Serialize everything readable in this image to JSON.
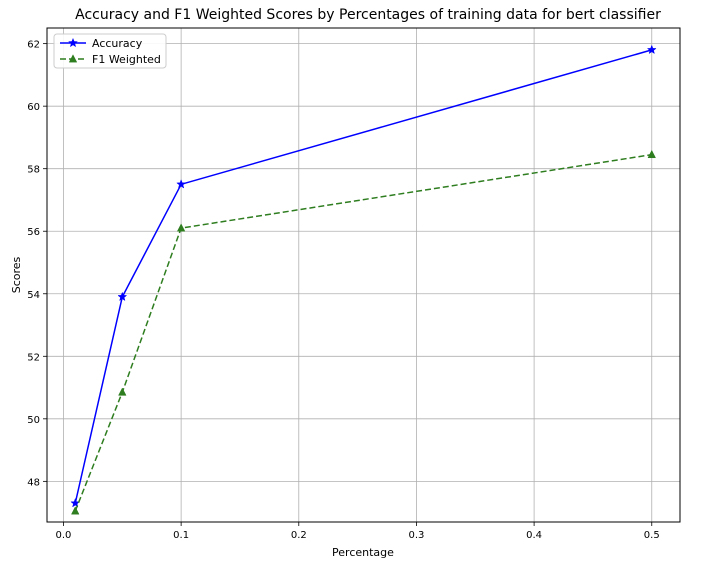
{
  "chart_data": {
    "type": "line",
    "title": "Accuracy and F1 Weighted Scores by Percentages of training data for bert classifier",
    "xlabel": "Percentage",
    "ylabel": "Scores",
    "x": [
      0.01,
      0.05,
      0.1,
      0.5
    ],
    "xlim": [
      -0.014,
      0.524
    ],
    "ylim": [
      46.7,
      62.5
    ],
    "xticks": [
      0.0,
      0.1,
      0.2,
      0.3,
      0.4,
      0.5
    ],
    "xtick_labels": [
      "0.0",
      "0.1",
      "0.2",
      "0.3",
      "0.4",
      "0.5"
    ],
    "yticks": [
      48,
      50,
      52,
      54,
      56,
      58,
      60,
      62
    ],
    "ytick_labels": [
      "48",
      "50",
      "52",
      "54",
      "56",
      "58",
      "60",
      "62"
    ],
    "grid": true,
    "legend_position": "top-left",
    "series": [
      {
        "name": "Accuracy",
        "values": [
          47.3,
          53.9,
          57.5,
          61.8
        ],
        "color": "#0000ff",
        "line_style": "solid",
        "marker": "star"
      },
      {
        "name": "F1 Weighted",
        "values": [
          47.05,
          50.85,
          56.1,
          58.45
        ],
        "color": "#2e7d1f",
        "line_style": "dashed",
        "marker": "triangle"
      }
    ]
  }
}
